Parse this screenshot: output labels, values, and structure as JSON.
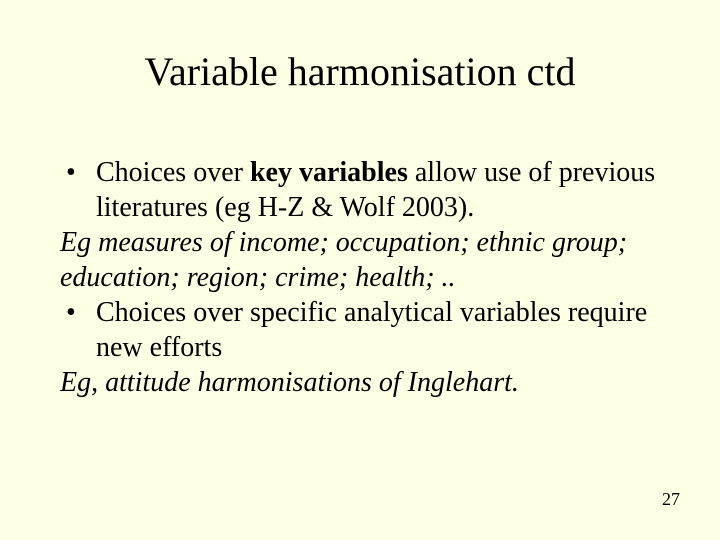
{
  "slide": {
    "background_color": "#ffffe5",
    "text_color": "#000000",
    "title_fontsize": 40,
    "body_fontsize": 28,
    "pagenum_fontsize": 18,
    "font_family": "Times New Roman",
    "title": "Variable harmonisation ctd",
    "bullet1_prefix": "Choices over ",
    "bullet1_bold": "key variables",
    "bullet1_suffix": " allow use of previous literatures (eg H-Z & Wolf 2003).",
    "line2": "Eg measures of income; occupation; ethnic group; education; region; crime; health; ..",
    "bullet3": "Choices over specific analytical variables require new efforts",
    "line4": "Eg, attitude harmonisations of Inglehart.",
    "page_number": "27"
  }
}
